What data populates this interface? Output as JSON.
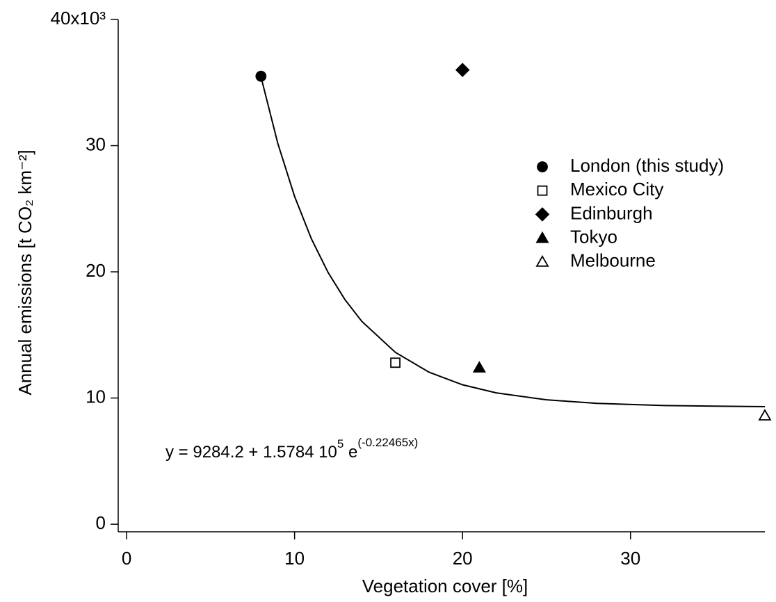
{
  "chart_data": {
    "type": "scatter",
    "x_label": "Vegetation cover [%]",
    "y_label": "Annual emissions [t CO₂ km⁻²]",
    "xlim": [
      -0.5,
      38
    ],
    "ylim": [
      -600,
      40000
    ],
    "xticks": [
      0,
      10,
      20,
      30
    ],
    "yticks": [
      0,
      {
        "value": 10000,
        "label": "10"
      },
      {
        "value": 20000,
        "label": "20"
      },
      {
        "value": 30000,
        "label": "30"
      },
      {
        "value": 40000,
        "label": "40x10³"
      }
    ],
    "series": [
      {
        "name": "London (this study)",
        "color": "#000000",
        "marker": "circle",
        "x": [
          8
        ],
        "values": [
          35500
        ]
      },
      {
        "name": "Mexico City",
        "color": "#000000",
        "marker": "square-open",
        "x": [
          16
        ],
        "values": [
          12800
        ]
      },
      {
        "name": "Edinburgh",
        "color": "#000000",
        "marker": "diamond",
        "x": [
          20
        ],
        "values": [
          36000
        ]
      },
      {
        "name": "Tokyo",
        "color": "#000000",
        "marker": "triangle",
        "x": [
          21
        ],
        "values": [
          12400
        ]
      },
      {
        "name": "Melbourne",
        "color": "#000000",
        "marker": "triangle-open",
        "x": [
          38
        ],
        "values": [
          8600
        ]
      }
    ],
    "fit": {
      "color": "#000000",
      "x": [
        8,
        9,
        10,
        11,
        12,
        13,
        14,
        16,
        18,
        20,
        22,
        25,
        28,
        32,
        38
      ],
      "values": [
        35449,
        30187,
        25981,
        22621,
        19938,
        17795,
        16082,
        13622,
        12051,
        11050,
        10411,
        9859,
        9577,
        9403,
        9315
      ],
      "equation": [
        "y = 9284.2 + 1.5784 10",
        "5",
        " e",
        "(-0.22465x)"
      ]
    }
  }
}
